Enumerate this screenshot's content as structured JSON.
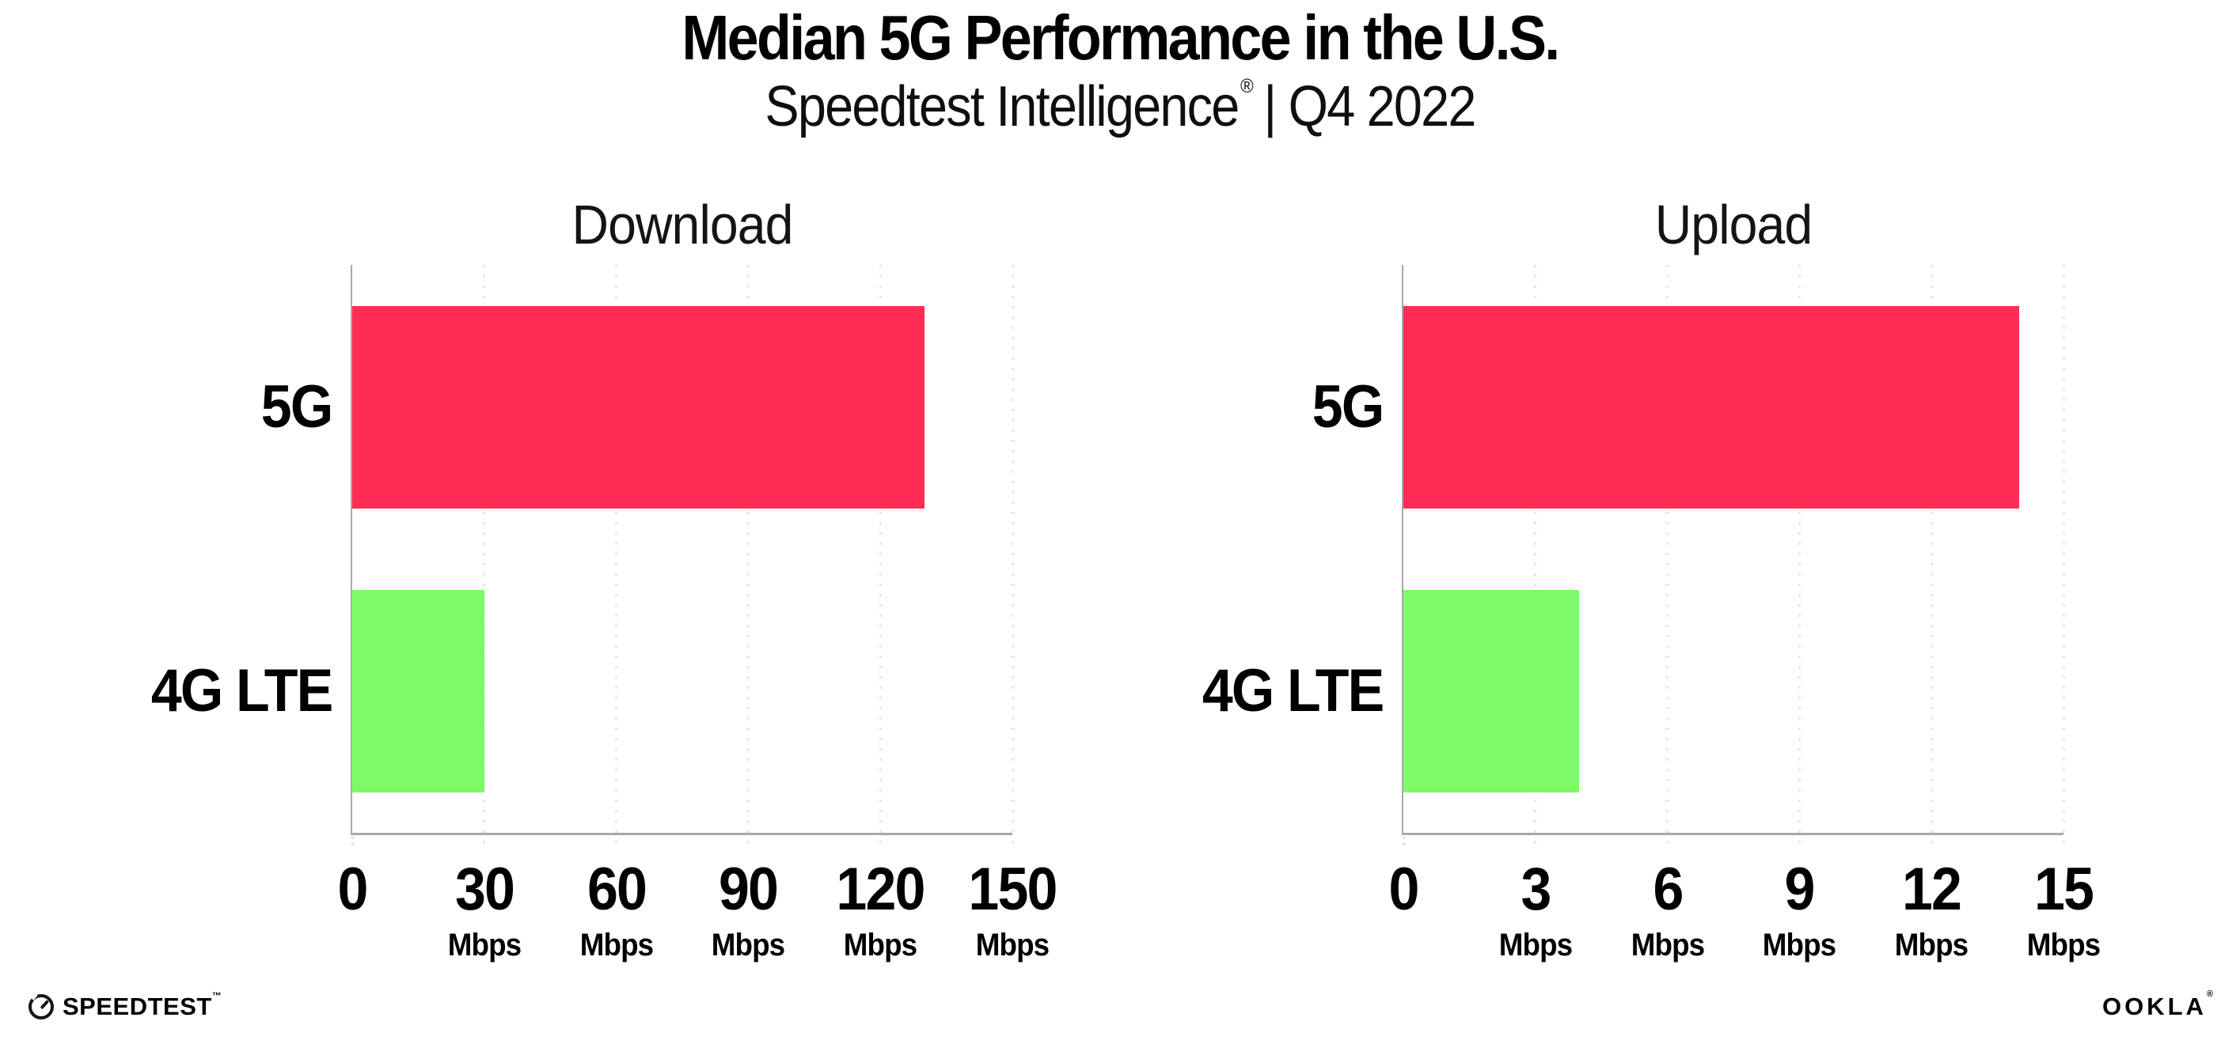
{
  "page": {
    "title": "Median 5G Performance in the U.S.",
    "subtitle": {
      "brand": "Speedtest Intelligence",
      "registered_mark": "®",
      "tail": "| Q4 2022"
    }
  },
  "chart_data": [
    {
      "type": "bar",
      "orientation": "horizontal",
      "title": "Download",
      "categories": [
        "5G",
        "4G LTE"
      ],
      "values": [
        130,
        30
      ],
      "unit": "Mbps",
      "xlim": [
        0,
        150
      ],
      "ticks": [
        0,
        30,
        60,
        90,
        120,
        150
      ],
      "grid": "vertical-dotted",
      "legend": "none"
    },
    {
      "type": "bar",
      "orientation": "horizontal",
      "title": "Upload",
      "categories": [
        "5G",
        "4G LTE"
      ],
      "values": [
        14,
        4
      ],
      "unit": "Mbps",
      "xlim": [
        0,
        15
      ],
      "ticks": [
        0,
        3,
        6,
        9,
        12,
        15
      ],
      "grid": "vertical-dotted",
      "legend": "none"
    }
  ],
  "colors": {
    "bar_5g": "#ff2d55",
    "bar_4g": "#7dfb67",
    "axis": "#a8a8a8",
    "gridline": "#e4e4ee",
    "background": "#ffffff",
    "text": "#000000"
  },
  "footer": {
    "speedtest_wordmark": "SPEEDTEST",
    "speedtest_trademark": "™",
    "ookla_wordmark": "OOKLA",
    "ookla_registered": "®"
  }
}
